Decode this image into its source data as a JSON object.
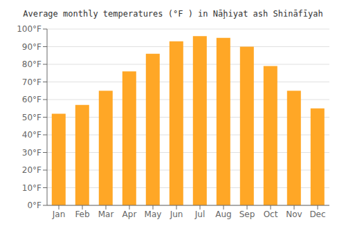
{
  "chart_data": {
    "type": "bar",
    "title": "Average monthly temperatures (°F ) in Nāḩiyat ash Shināfīyah",
    "categories": [
      "Jan",
      "Feb",
      "Mar",
      "Apr",
      "May",
      "Jun",
      "Jul",
      "Aug",
      "Sep",
      "Oct",
      "Nov",
      "Dec"
    ],
    "values": [
      52,
      57,
      65,
      76,
      86,
      93,
      96,
      95,
      90,
      79,
      65,
      55
    ],
    "color": "#FFA726",
    "ylim": [
      0,
      100
    ],
    "yticks": [
      {
        "value": 0,
        "label": "0°F"
      },
      {
        "value": 10,
        "label": "10°F"
      },
      {
        "value": 20,
        "label": "20°F"
      },
      {
        "value": 30,
        "label": "30°F"
      },
      {
        "value": 40,
        "label": "40°F"
      },
      {
        "value": 50,
        "label": "50°F"
      },
      {
        "value": 60,
        "label": "60°F"
      },
      {
        "value": 70,
        "label": "70°F"
      },
      {
        "value": 80,
        "label": "80°F"
      },
      {
        "value": 90,
        "label": "90°F"
      },
      {
        "value": 100,
        "label": "100°F"
      }
    ],
    "grid": true
  }
}
